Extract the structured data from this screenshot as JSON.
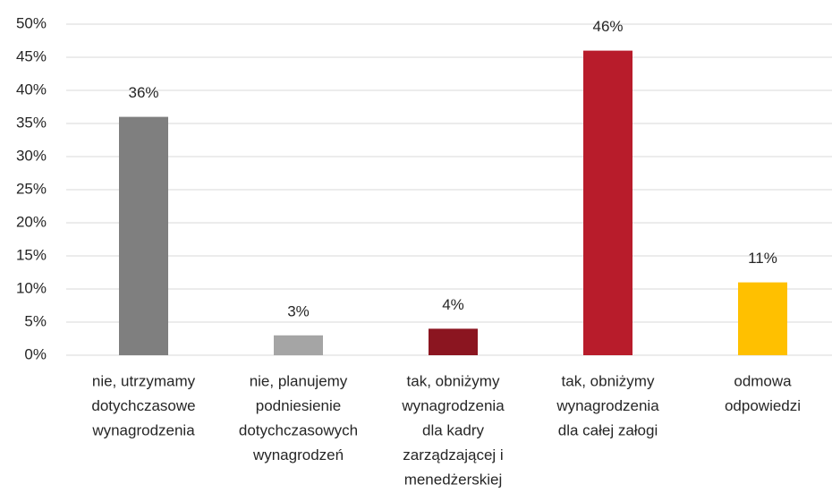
{
  "chart_data": {
    "type": "bar",
    "categories": [
      [
        "nie, utrzymamy",
        "dotychczasowe",
        "wynagrodzenia"
      ],
      [
        "nie, planujemy",
        "podniesienie",
        "dotychczasowych",
        "wynagrodzeń"
      ],
      [
        "tak, obniżymy",
        "wynagrodzenia",
        "dla kadry",
        "zarządzającej i",
        "menedżerskiej"
      ],
      [
        "tak, obniżymy",
        "wynagrodzenia",
        "dla całej załogi"
      ],
      [
        "odmowa",
        "odpowiedzi"
      ]
    ],
    "values": [
      36,
      3,
      4,
      46,
      11
    ],
    "value_labels": [
      "36%",
      "3%",
      "4%",
      "46%",
      "11%"
    ],
    "colors": [
      "#7f7f7f",
      "#a5a5a5",
      "#8b1520",
      "#b81c2b",
      "#ffc000"
    ],
    "ylim": [
      0,
      50
    ],
    "yticks": [
      {
        "value": 0,
        "label": "0%"
      },
      {
        "value": 5,
        "label": "5%"
      },
      {
        "value": 10,
        "label": "10%"
      },
      {
        "value": 15,
        "label": "15%"
      },
      {
        "value": 20,
        "label": "20%"
      },
      {
        "value": 25,
        "label": "25%"
      },
      {
        "value": 30,
        "label": "30%"
      },
      {
        "value": 35,
        "label": "35%"
      },
      {
        "value": 40,
        "label": "40%"
      },
      {
        "value": 45,
        "label": "45%"
      },
      {
        "value": 50,
        "label": "50%"
      }
    ],
    "grid": true
  }
}
